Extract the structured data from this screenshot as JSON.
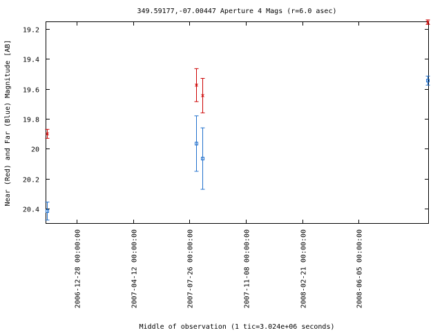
{
  "chart_data": {
    "type": "scatter",
    "title": "349.59177,-07.00447   Aperture 4 Mags (r=6.0 asec)",
    "xlabel": "Middle of observation (1 tic=3.024e+06 seconds)",
    "ylabel": "Near (Red) and Far (Blue) Magnitude [AB]",
    "y_inverted": true,
    "ylim": [
      20.5,
      19.15
    ],
    "yticks": [
      19.2,
      19.4,
      19.6,
      19.8,
      20,
      20.2,
      20.4
    ],
    "ytick_labels": [
      "19.2",
      "19.4",
      "19.6",
      "19.8",
      "20",
      "20.2",
      "20.4"
    ],
    "xlim": [
      "2006-10-31",
      "2008-10-14"
    ],
    "xticks": [
      "2006-12-28",
      "2007-04-12",
      "2007-07-26",
      "2007-11-08",
      "2008-02-21",
      "2008-06-05"
    ],
    "xtick_labels": [
      "2006-12-28 00:00:00",
      "2007-04-12 00:00:00",
      "2007-07-26 00:00:00",
      "2007-11-08 00:00:00",
      "2008-02-21 00:00:00",
      "2008-06-05 00:00:00"
    ],
    "grid": false,
    "series": [
      {
        "color": "#cc0000",
        "marker": "x",
        "points": [
          {
            "x": "2006-11-02",
            "y": 19.9,
            "err": 0.03
          },
          {
            "x": "2007-08-07",
            "y": 19.575,
            "err": 0.11
          },
          {
            "x": "2007-08-19",
            "y": 19.645,
            "err": 0.115
          },
          {
            "x": "2008-10-11",
            "y": 19.155,
            "err": 0.015
          }
        ]
      },
      {
        "color": "#1f6fcc",
        "marker": "square",
        "points": [
          {
            "x": "2006-11-02",
            "y": 20.415,
            "err": 0.06
          },
          {
            "x": "2007-08-07",
            "y": 19.965,
            "err": 0.185
          },
          {
            "x": "2007-08-19",
            "y": 20.065,
            "err": 0.205
          },
          {
            "x": "2008-10-11",
            "y": 19.545,
            "err": 0.03
          }
        ]
      }
    ]
  }
}
